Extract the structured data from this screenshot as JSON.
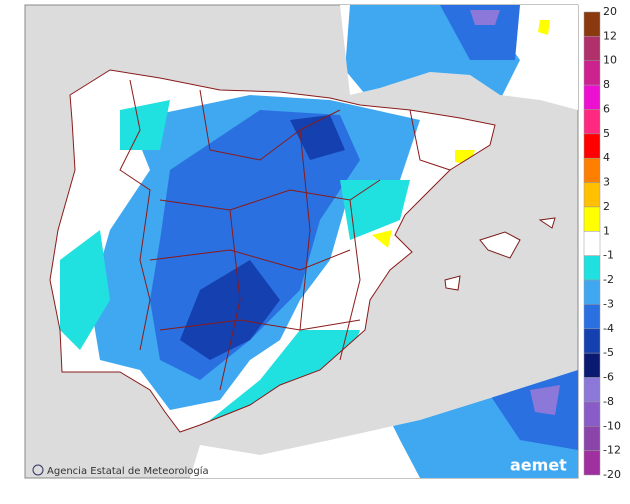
{
  "credit": "Agencia Estatal de Meteorología",
  "logo": "aemet",
  "legend": {
    "ticks": [
      20,
      12,
      10,
      8,
      6,
      5,
      4,
      3,
      2,
      1,
      -1,
      -2,
      -3,
      -4,
      -5,
      -6,
      -8,
      -10,
      -12,
      -20
    ],
    "colors": [
      "#8b3a0f",
      "#b0306a",
      "#cc2290",
      "#ee10d0",
      "#ff2a80",
      "#ff0000",
      "#ff8000",
      "#ffc000",
      "#ffff00",
      "#ffffff",
      "#20e0e0",
      "#40a8f0",
      "#2a70e0",
      "#1440b0",
      "#0a1a70",
      "#8c78d8",
      "#8a5cc8",
      "#8a44aa",
      "#a030a0"
    ]
  }
}
